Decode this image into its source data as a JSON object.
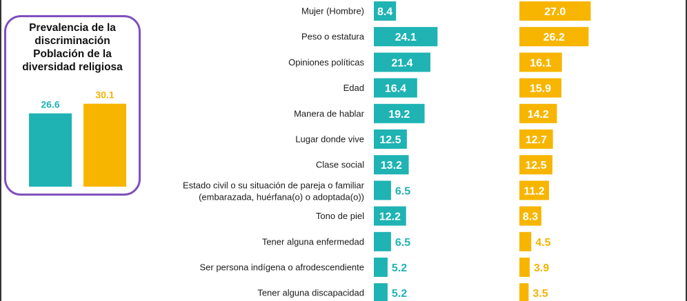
{
  "colors": {
    "teal": "#1fb3b3",
    "gold": "#f7b500",
    "inset_border": "#7f4fbf"
  },
  "inset": {
    "title": "Prevalencia de la\ndiscriminación\nPoblación de la\ndiversidad religiosa",
    "values": [
      26.6,
      30.1
    ],
    "labels": [
      "26.6",
      "30.1"
    ]
  },
  "chart_data": [
    {
      "type": "bar",
      "orientation": "horizontal",
      "title": "Prevalencia de la discriminación Población de la diversidad religiosa",
      "categories": [
        "",
        ""
      ],
      "series": [
        {
          "values": [
            26.6,
            30.1
          ]
        }
      ]
    },
    {
      "type": "bar",
      "orientation": "horizontal",
      "categories": [
        "Mujer (Hombre)",
        "Peso o estatura",
        "Opiniones políticas",
        "Edad",
        "Manera de hablar",
        "Lugar donde vive",
        "Clase social",
        "Estado civil o su situación de pareja o familiar\n(embarazada, huérfana(o) o adoptada(o))",
        "Tono de piel",
        "Tener alguna enfermedad",
        "Ser persona indígena o afrodescendiente",
        "Tener alguna discapacidad"
      ],
      "series": [
        {
          "values": [
            8.4,
            24.1,
            21.4,
            16.4,
            19.2,
            12.5,
            13.2,
            6.5,
            12.2,
            6.5,
            5.2,
            5.2
          ]
        },
        {
          "values": [
            27.0,
            26.2,
            16.1,
            15.9,
            14.2,
            12.7,
            12.5,
            11.2,
            8.3,
            4.5,
            3.9,
            3.5
          ]
        }
      ]
    }
  ]
}
